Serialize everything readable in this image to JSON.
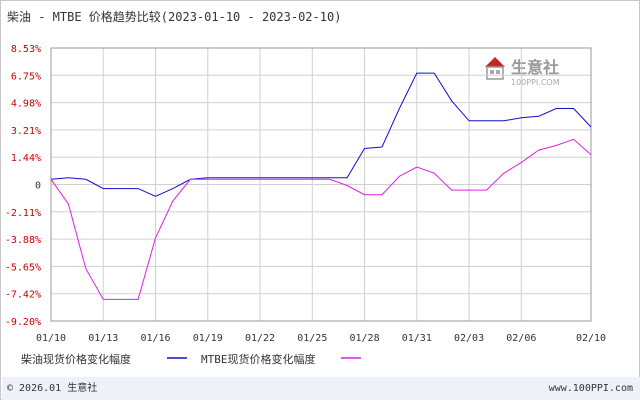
{
  "title": "柴油 - MTBE 价格趋势比较(2023-01-10 - 2023-02-10)",
  "footer": {
    "left": "© 2026.01 生意社",
    "right": "www.100PPI.com"
  },
  "watermark": {
    "name": "生意社",
    "url": "100PPI.COM"
  },
  "colors": {
    "series1": "#1010cc",
    "series2": "#e020e0",
    "positive_tick": "#cc0000",
    "negative_tick": "#cc0000",
    "zero_tick": "#333333",
    "grid": "#d0d0d0",
    "logo_red": "#cc2222",
    "logo_gray": "#888888",
    "footer_bg": "#eef2f8"
  },
  "chart_data": {
    "type": "line",
    "x": [
      "01/10",
      "01/11",
      "01/12",
      "01/13",
      "01/14",
      "01/15",
      "01/16",
      "01/17",
      "01/18",
      "01/19",
      "01/20",
      "01/21",
      "01/22",
      "01/23",
      "01/24",
      "01/25",
      "01/26",
      "01/27",
      "01/28",
      "01/29",
      "01/30",
      "01/31",
      "02/01",
      "02/02",
      "02/03",
      "02/04",
      "02/05",
      "02/06",
      "02/07",
      "02/08",
      "02/09",
      "02/10"
    ],
    "x_ticks": [
      "01/10",
      "01/13",
      "01/16",
      "01/19",
      "01/22",
      "01/25",
      "01/28",
      "01/31",
      "02/03",
      "02/06",
      "02/10"
    ],
    "y_ticks": [
      "8.53%",
      "6.75%",
      "4.98%",
      "3.21%",
      "1.44%",
      "0",
      "-2.11%",
      "-3.88%",
      "-5.65%",
      "-7.42%",
      "-9.20%"
    ],
    "ylim": [
      -9.2,
      8.53
    ],
    "xlabel": "",
    "ylabel": "",
    "grid": true,
    "legend_position": "bottom-left",
    "series": [
      {
        "name": "柴油现货价格变化幅度",
        "values": [
          0,
          0.1,
          0,
          -0.6,
          -0.6,
          -0.6,
          -1.1,
          -0.6,
          0,
          0.1,
          0.1,
          0.1,
          0.1,
          0.1,
          0.1,
          0.1,
          0.1,
          0.1,
          2.0,
          2.1,
          4.6,
          6.9,
          6.9,
          5.1,
          3.8,
          3.8,
          3.8,
          4.0,
          4.1,
          4.6,
          4.6,
          3.4
        ]
      },
      {
        "name": "MTBE现货价格变化幅度",
        "values": [
          0,
          -1.6,
          -5.8,
          -7.8,
          -7.8,
          -7.8,
          -3.8,
          -1.4,
          0,
          0,
          0,
          0,
          0,
          0,
          0,
          0,
          0,
          -0.4,
          -1.0,
          -1.0,
          0.2,
          0.8,
          0.4,
          -0.7,
          -0.7,
          -0.7,
          0.4,
          1.1,
          1.9,
          2.2,
          2.6,
          1.6
        ]
      }
    ]
  }
}
